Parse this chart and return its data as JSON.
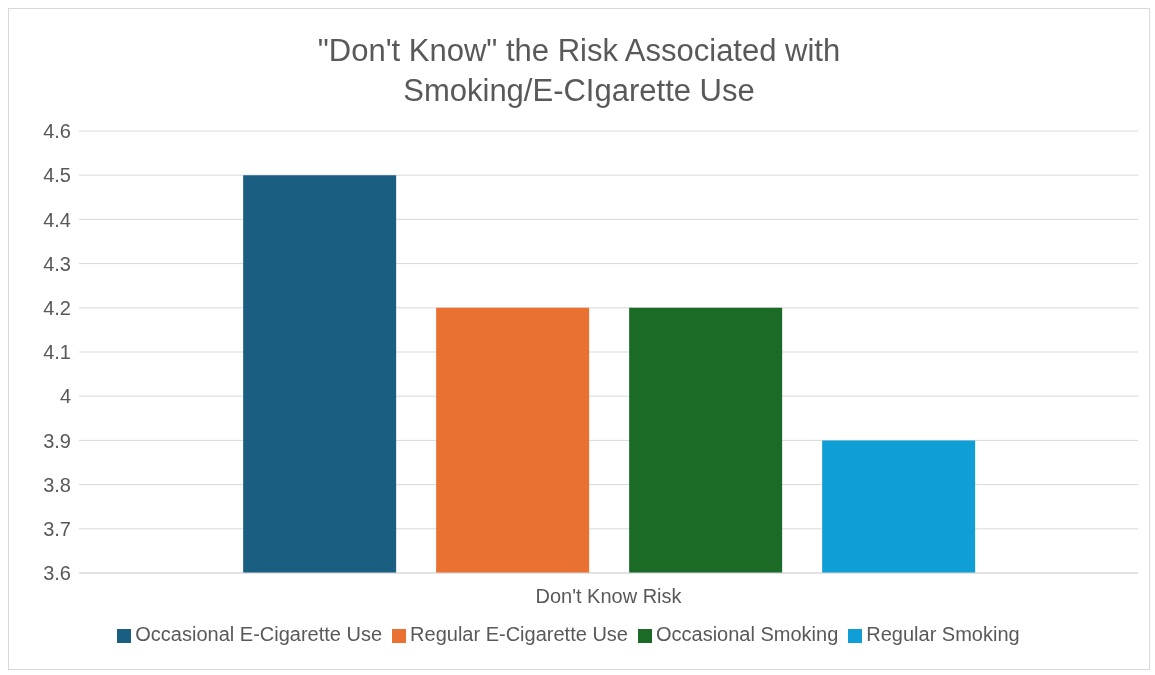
{
  "chart_data": {
    "type": "bar",
    "title": "\"Don't Know\" the Risk Associated with Smoking/E-CIgarette Use",
    "categories": [
      "Don't Know Risk"
    ],
    "series": [
      {
        "name": "Occasional E-Cigarette Use",
        "color": "#1a5f82",
        "values": [
          4.5
        ]
      },
      {
        "name": "Regular E-Cigarette Use",
        "color": "#e97132",
        "values": [
          4.2
        ]
      },
      {
        "name": "Occasional Smoking",
        "color": "#1b6b26",
        "values": [
          4.2
        ]
      },
      {
        "name": "Regular Smoking",
        "color": "#0f9ed5",
        "values": [
          3.9
        ]
      }
    ],
    "ylim": [
      3.6,
      4.6
    ],
    "yticks": [
      3.6,
      3.7,
      3.8,
      3.9,
      4,
      4.1,
      4.2,
      4.3,
      4.4,
      4.5,
      4.6
    ],
    "grid": "y",
    "legend": "bottom"
  }
}
